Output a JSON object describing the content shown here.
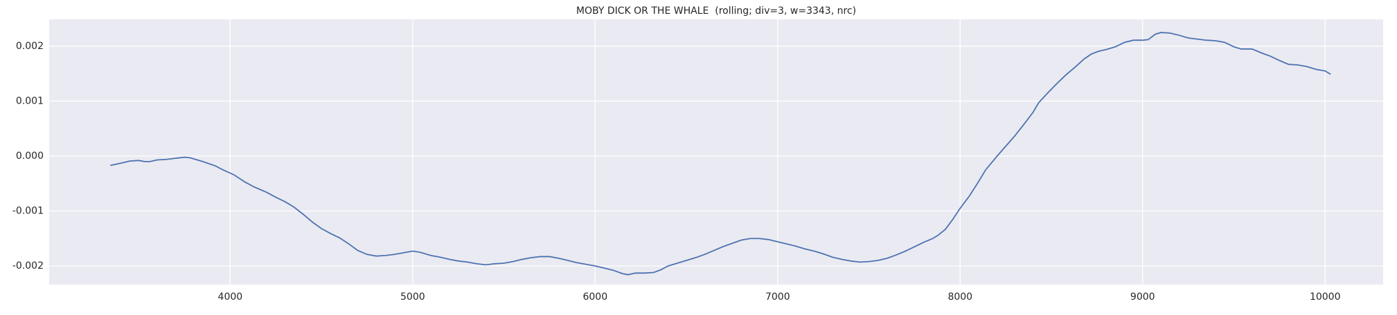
{
  "chart_data": {
    "type": "line",
    "title": "MOBY DICK OR THE WHALE  (rolling; div=3, w=3343, nrc)",
    "x": [
      3343,
      3400,
      3450,
      3500,
      3530,
      3560,
      3600,
      3650,
      3700,
      3750,
      3780,
      3850,
      3920,
      3960,
      4020,
      4080,
      4130,
      4200,
      4250,
      4300,
      4350,
      4400,
      4450,
      4500,
      4550,
      4600,
      4650,
      4700,
      4750,
      4800,
      4850,
      4900,
      4950,
      5000,
      5040,
      5100,
      5150,
      5200,
      5250,
      5300,
      5350,
      5400,
      5450,
      5500,
      5550,
      5600,
      5650,
      5700,
      5750,
      5800,
      5850,
      5900,
      5950,
      6000,
      6050,
      6100,
      6150,
      6180,
      6220,
      6270,
      6320,
      6360,
      6400,
      6450,
      6500,
      6550,
      6600,
      6650,
      6700,
      6750,
      6800,
      6850,
      6900,
      6950,
      7000,
      7050,
      7100,
      7150,
      7200,
      7250,
      7300,
      7350,
      7400,
      7450,
      7500,
      7550,
      7600,
      7650,
      7700,
      7750,
      7800,
      7850,
      7880,
      7920,
      7960,
      8000,
      8050,
      8100,
      8140,
      8200,
      8250,
      8300,
      8350,
      8400,
      8430,
      8480,
      8530,
      8580,
      8630,
      8680,
      8720,
      8760,
      8800,
      8850,
      8900,
      8950,
      9000,
      9030,
      9070,
      9100,
      9150,
      9200,
      9250,
      9300,
      9350,
      9400,
      9450,
      9500,
      9540,
      9600,
      9650,
      9700,
      9750,
      9800,
      9850,
      9900,
      9950,
      10000,
      10030
    ],
    "series": [
      {
        "color": "#4c72b0",
        "values": [
          -0.00017,
          -0.00013,
          -9e-05,
          -8e-05,
          -0.0001,
          -0.0001,
          -7e-05,
          -6e-05,
          -4e-05,
          -2e-05,
          -3e-05,
          -0.0001,
          -0.00018,
          -0.00025,
          -0.00034,
          -0.00047,
          -0.00056,
          -0.00066,
          -0.00075,
          -0.00083,
          -0.00093,
          -0.00106,
          -0.0012,
          -0.00132,
          -0.00141,
          -0.00149,
          -0.0016,
          -0.00172,
          -0.00179,
          -0.00182,
          -0.00181,
          -0.00179,
          -0.00176,
          -0.00173,
          -0.00175,
          -0.00181,
          -0.00184,
          -0.00188,
          -0.00191,
          -0.00193,
          -0.00196,
          -0.00198,
          -0.00196,
          -0.00195,
          -0.00192,
          -0.00188,
          -0.00185,
          -0.00183,
          -0.00183,
          -0.00186,
          -0.0019,
          -0.00194,
          -0.00197,
          -0.002,
          -0.00204,
          -0.00208,
          -0.00214,
          -0.00216,
          -0.00213,
          -0.00213,
          -0.00212,
          -0.00207,
          -0.002,
          -0.00195,
          -0.0019,
          -0.00185,
          -0.00179,
          -0.00172,
          -0.00165,
          -0.00159,
          -0.00153,
          -0.0015,
          -0.0015,
          -0.00152,
          -0.00156,
          -0.0016,
          -0.00164,
          -0.00169,
          -0.00173,
          -0.00178,
          -0.00184,
          -0.00188,
          -0.00191,
          -0.00193,
          -0.00192,
          -0.0019,
          -0.00186,
          -0.0018,
          -0.00173,
          -0.00165,
          -0.00157,
          -0.0015,
          -0.00144,
          -0.00133,
          -0.00115,
          -0.00095,
          -0.00073,
          -0.00047,
          -0.00025,
          -1e-05,
          0.00018,
          0.00037,
          0.00058,
          0.0008,
          0.00097,
          0.00115,
          0.00132,
          0.00148,
          0.00162,
          0.00177,
          0.00186,
          0.00191,
          0.00194,
          0.00199,
          0.00207,
          0.00211,
          0.00211,
          0.00212,
          0.00222,
          0.00225,
          0.00224,
          0.0022,
          0.00215,
          0.00213,
          0.00211,
          0.0021,
          0.00207,
          0.00199,
          0.00195,
          0.00195,
          0.00188,
          0.00182,
          0.00174,
          0.00167,
          0.00166,
          0.00163,
          0.00158,
          0.00155,
          0.00149
        ]
      }
    ],
    "xlim": [
      3008,
      10318
    ],
    "xticks": [
      4000,
      5000,
      6000,
      7000,
      8000,
      9000,
      10000
    ],
    "ylim": [
      -0.00234,
      0.00249
    ],
    "yticks": [
      -0.002,
      -0.001,
      {
        "value": 0,
        "label": "0.000"
      },
      0.001,
      0.002
    ],
    "grid": true,
    "background": "#eaeaf2"
  }
}
